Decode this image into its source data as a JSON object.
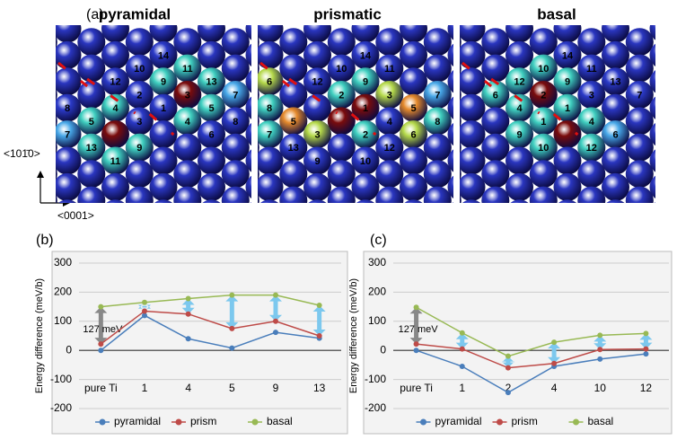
{
  "panel_a": {
    "label": "(a)",
    "axis_vertical": "<101̄0>",
    "axis_horizontal": "<0001>",
    "panels": [
      {
        "title": "pyramidal",
        "atoms": [
          {
            "label": "14",
            "color": "#2b3ac8"
          },
          {
            "label": "10",
            "color": "#2b3ac8"
          },
          {
            "label": "11",
            "color": "#40d0c0"
          },
          {
            "label": "12",
            "color": "#2b3ac8"
          },
          {
            "label": "9",
            "color": "#40d0c0"
          },
          {
            "label": "13",
            "color": "#40d0c0"
          },
          {
            "label": "2",
            "color": "#2b3ac8"
          },
          {
            "label": "3",
            "color": "#7a0c0c"
          },
          {
            "label": "7",
            "color": "#48a8e8"
          },
          {
            "label": "8",
            "color": "#2b3ac8"
          },
          {
            "label": "4",
            "color": "#40d0c0"
          },
          {
            "label": "1",
            "color": "#2b3ac8"
          },
          {
            "label": "5",
            "color": "#40d0c0"
          },
          {
            "label": "5",
            "color": "#40d0c0"
          },
          {
            "label": "3",
            "color": "#2b3ac8"
          },
          {
            "label": "4",
            "color": "#40d0c0"
          },
          {
            "label": "8",
            "color": "#2b3ac8"
          },
          {
            "label": "7",
            "color": "#48a8e8"
          },
          {
            "label": "6",
            "color": "#2b3ac8"
          },
          {
            "label": "13",
            "color": "#40d0c0"
          },
          {
            "label": "9",
            "color": "#40d0c0"
          },
          {
            "label": "11",
            "color": "#40d0c0"
          }
        ]
      },
      {
        "title": "prismatic",
        "atoms": [
          {
            "label": "14",
            "color": "#2b3ac8"
          },
          {
            "label": "10",
            "color": "#2b3ac8"
          },
          {
            "label": "11",
            "color": "#2b3ac8"
          },
          {
            "label": "6",
            "color": "#b5d94a"
          },
          {
            "label": "12",
            "color": "#2b3ac8"
          },
          {
            "label": "9",
            "color": "#40d0c0"
          },
          {
            "label": "2",
            "color": "#40d0c0"
          },
          {
            "label": "3",
            "color": "#b5d94a"
          },
          {
            "label": "7",
            "color": "#48a8e8"
          },
          {
            "label": "8",
            "color": "#40d0c0"
          },
          {
            "label": "1",
            "color": "#7a0c0c"
          },
          {
            "label": "5",
            "color": "#e58a2c"
          },
          {
            "label": "5",
            "color": "#e58a2c"
          },
          {
            "label": "4",
            "color": "#2b3ac8"
          },
          {
            "label": "8",
            "color": "#40d0c0"
          },
          {
            "label": "7",
            "color": "#40d0c0"
          },
          {
            "label": "3",
            "color": "#b5d94a"
          },
          {
            "label": "2",
            "color": "#40d0c0"
          },
          {
            "label": "6",
            "color": "#b5d94a"
          },
          {
            "label": "13",
            "color": "#2b3ac8"
          },
          {
            "label": "12",
            "color": "#2b3ac8"
          },
          {
            "label": "9",
            "color": "#2b3ac8"
          },
          {
            "label": "10",
            "color": "#2b3ac8"
          }
        ]
      },
      {
        "title": "basal",
        "atoms": [
          {
            "label": "14",
            "color": "#2b3ac8"
          },
          {
            "label": "10",
            "color": "#40d0c0"
          },
          {
            "label": "11",
            "color": "#2b3ac8"
          },
          {
            "label": "12",
            "color": "#40d0c0"
          },
          {
            "label": "9",
            "color": "#40d0c0"
          },
          {
            "label": "13",
            "color": "#2b3ac8"
          },
          {
            "label": "6",
            "color": "#40d0c0"
          },
          {
            "label": "2",
            "color": "#7a0c0c"
          },
          {
            "label": "3",
            "color": "#2b3ac8"
          },
          {
            "label": "7",
            "color": "#2b3ac8"
          },
          {
            "label": "4",
            "color": "#40d0c0"
          },
          {
            "label": "1",
            "color": "#40d0c0"
          },
          {
            "label": "1",
            "color": "#40d0c0"
          },
          {
            "label": "4",
            "color": "#40d0c0"
          },
          {
            "label": "9",
            "color": "#40d0c0"
          },
          {
            "label": "6",
            "color": "#48a8e8"
          },
          {
            "label": "10",
            "color": "#40d0c0"
          },
          {
            "label": "12",
            "color": "#40d0c0"
          }
        ]
      }
    ]
  },
  "chart_data": [
    {
      "type": "line",
      "label": "(b)",
      "y_label": "Energy difference (meV/b)",
      "annotation": "127 meV",
      "categories": [
        "pure Ti",
        "1",
        "4",
        "5",
        "9",
        "13"
      ],
      "series": [
        {
          "name": "pyramidal",
          "color": "#4a7ebb",
          "values": [
            0,
            120,
            40,
            8,
            62,
            42
          ]
        },
        {
          "name": "prism",
          "color": "#be4b48",
          "values": [
            22,
            135,
            125,
            75,
            100,
            50
          ]
        },
        {
          "name": "basal",
          "color": "#98b954",
          "values": [
            150,
            165,
            178,
            190,
            190,
            155
          ]
        }
      ],
      "ylim": [
        -200,
        300
      ],
      "yticks": [
        -200,
        -100,
        0,
        100,
        200,
        300
      ],
      "grid": true,
      "legend": "bottom"
    },
    {
      "type": "line",
      "label": "(c)",
      "y_label": "Energy difference (meV/b)",
      "annotation": "127 meV",
      "categories": [
        "pure Ti",
        "1",
        "2",
        "4",
        "10",
        "12"
      ],
      "series": [
        {
          "name": "pyramidal",
          "color": "#4a7ebb",
          "values": [
            0,
            -55,
            -145,
            -55,
            -30,
            -12
          ]
        },
        {
          "name": "prism",
          "color": "#be4b48",
          "values": [
            22,
            5,
            -60,
            -45,
            3,
            5
          ]
        },
        {
          "name": "basal",
          "color": "#98b954",
          "values": [
            148,
            60,
            -20,
            28,
            52,
            58
          ]
        }
      ],
      "ylim": [
        -200,
        300
      ],
      "yticks": [
        -200,
        -100,
        0,
        100,
        200,
        300
      ],
      "grid": true,
      "legend": "bottom"
    }
  ]
}
